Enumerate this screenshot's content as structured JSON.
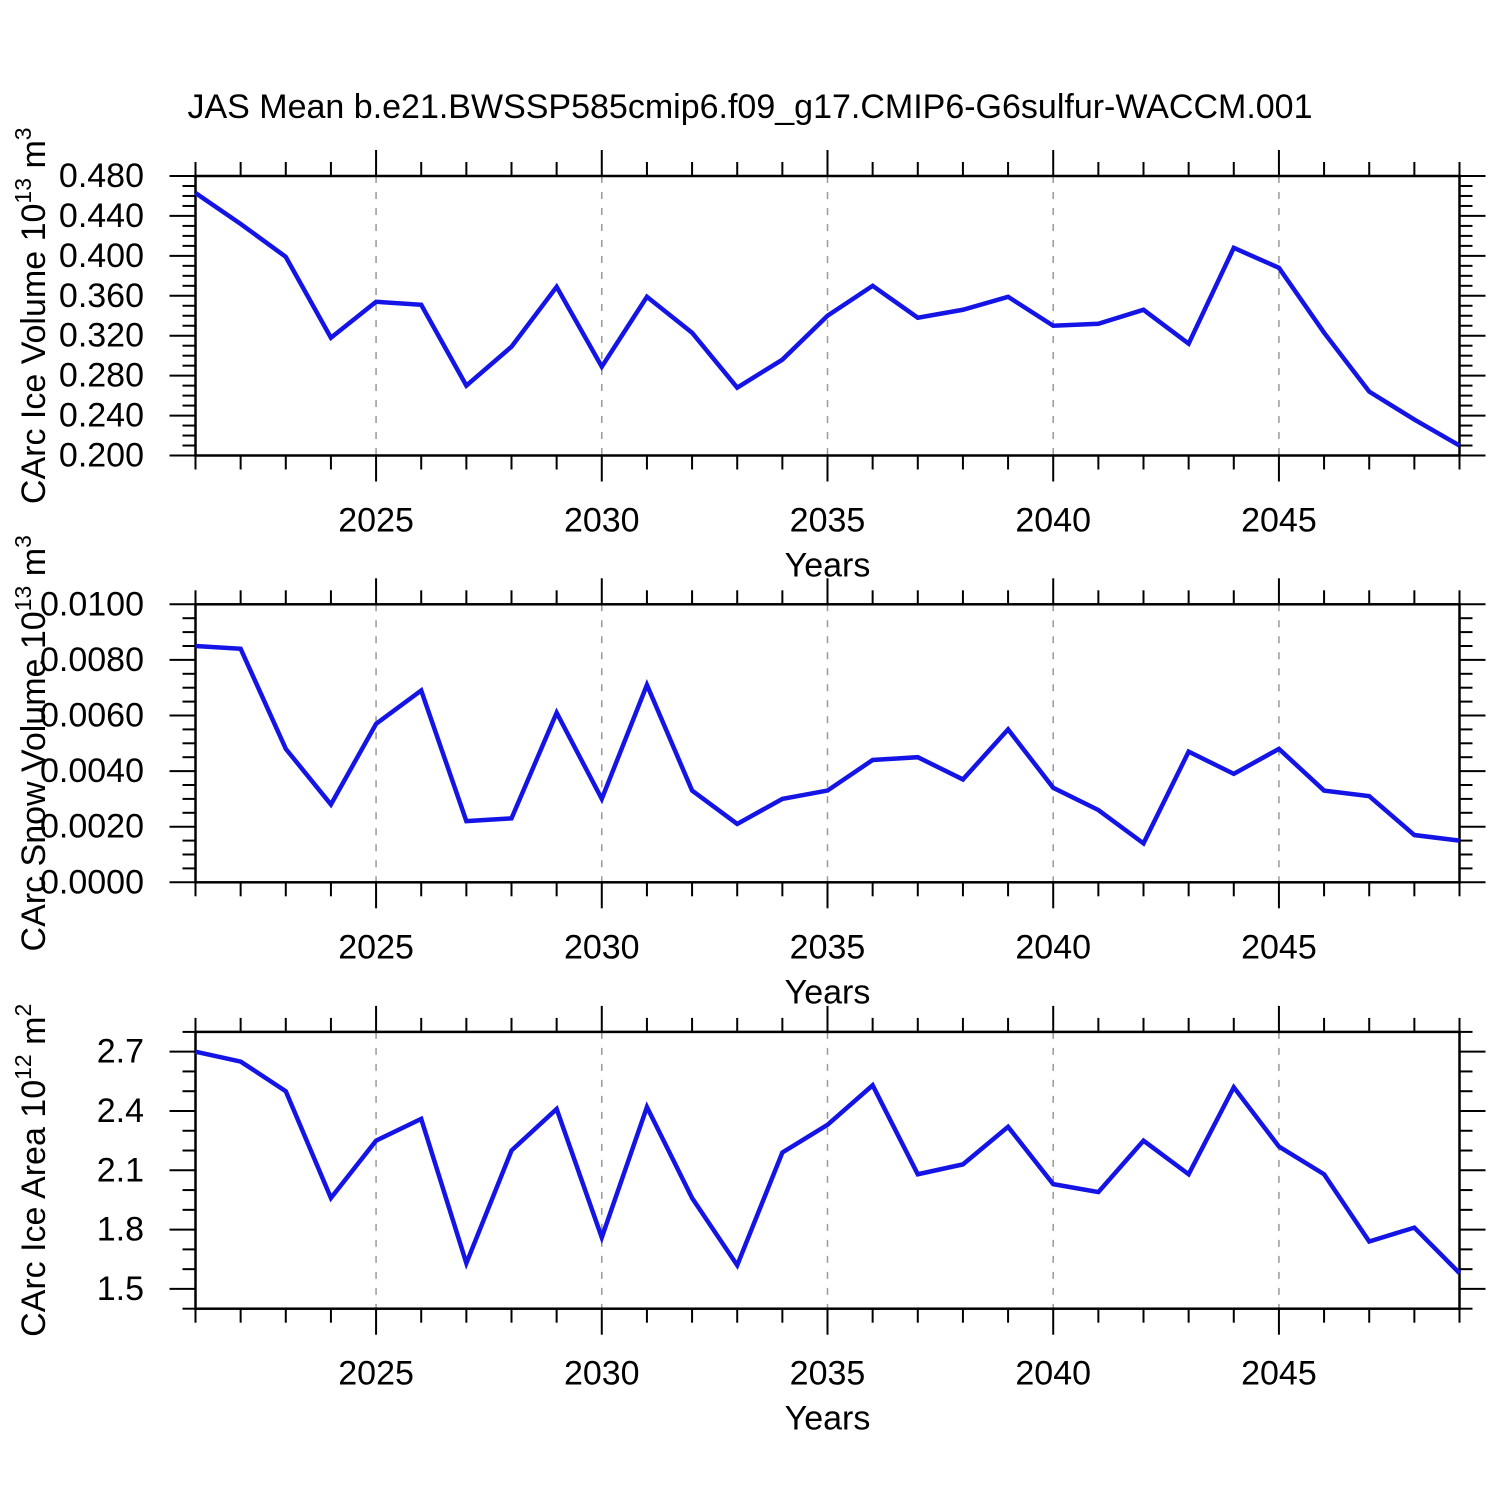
{
  "title": "JAS Mean b.e21.BWSSP585cmip6.f09_g17.CMIP6-G6sulfur-WACCM.001",
  "colors": {
    "line": "#1414e6",
    "axis": "#000000",
    "grid": "#999999",
    "background": "#ffffff",
    "text": "#000000"
  },
  "chart_data": [
    {
      "type": "line",
      "name": "ice-volume",
      "ylabel": "CArc Ice Volume 10^13 m^3",
      "ylabel_parts": [
        {
          "t": "CArc Ice Volume 10",
          "sup": false
        },
        {
          "t": "13",
          "sup": true
        },
        {
          "t": " m",
          "sup": false
        },
        {
          "t": "3",
          "sup": true
        }
      ],
      "xlabel": "Years",
      "x": [
        2021,
        2022,
        2023,
        2024,
        2025,
        2026,
        2027,
        2028,
        2029,
        2030,
        2031,
        2032,
        2033,
        2034,
        2035,
        2036,
        2037,
        2038,
        2039,
        2040,
        2041,
        2042,
        2043,
        2044,
        2045,
        2046,
        2047,
        2048,
        2049
      ],
      "values": [
        0.463,
        0.432,
        0.399,
        0.318,
        0.354,
        0.351,
        0.27,
        0.309,
        0.369,
        0.289,
        0.359,
        0.323,
        0.268,
        0.296,
        0.34,
        0.37,
        0.338,
        0.346,
        0.359,
        0.33,
        0.332,
        0.346,
        0.312,
        0.408,
        0.388,
        0.323,
        0.264,
        0.236,
        0.21
      ],
      "xlim": [
        2021,
        2049
      ],
      "ylim": [
        0.2,
        0.48
      ],
      "yticks": [
        0.2,
        0.24,
        0.28,
        0.32,
        0.36,
        0.4,
        0.44,
        0.48
      ],
      "ytick_labels": [
        "0.200",
        "0.240",
        "0.280",
        "0.320",
        "0.360",
        "0.400",
        "0.440",
        "0.480"
      ],
      "yminor_step": 0.01,
      "xticks": [
        2025,
        2030,
        2035,
        2040,
        2045
      ],
      "xtick_labels": [
        "2025",
        "2030",
        "2035",
        "2040",
        "2045"
      ],
      "xminor_step": 1,
      "grid": "vertical-dashed",
      "legend": "none"
    },
    {
      "type": "line",
      "name": "snow-volume",
      "ylabel": "CArc Snow Volume 10^13 m^3",
      "ylabel_parts": [
        {
          "t": "CArc Snow Volume 10",
          "sup": false
        },
        {
          "t": "13",
          "sup": true
        },
        {
          "t": " m",
          "sup": false
        },
        {
          "t": "3",
          "sup": true
        }
      ],
      "xlabel": "Years",
      "x": [
        2021,
        2022,
        2023,
        2024,
        2025,
        2026,
        2027,
        2028,
        2029,
        2030,
        2031,
        2032,
        2033,
        2034,
        2035,
        2036,
        2037,
        2038,
        2039,
        2040,
        2041,
        2042,
        2043,
        2044,
        2045,
        2046,
        2047,
        2048,
        2049
      ],
      "values": [
        0.0085,
        0.0084,
        0.0048,
        0.0028,
        0.0057,
        0.0069,
        0.0022,
        0.0023,
        0.0061,
        0.003,
        0.0071,
        0.0033,
        0.0021,
        0.003,
        0.0033,
        0.0044,
        0.0045,
        0.0037,
        0.0055,
        0.0034,
        0.0026,
        0.0014,
        0.0047,
        0.0039,
        0.0048,
        0.0033,
        0.0031,
        0.0017,
        0.0015
      ],
      "xlim": [
        2021,
        2049
      ],
      "ylim": [
        0.0,
        0.01
      ],
      "yticks": [
        0.0,
        0.002,
        0.004,
        0.006,
        0.008,
        0.01
      ],
      "ytick_labels": [
        "0.0000",
        "0.0020",
        "0.0040",
        "0.0060",
        "0.0080",
        "0.0100"
      ],
      "yminor_step": 0.0005,
      "xticks": [
        2025,
        2030,
        2035,
        2040,
        2045
      ],
      "xtick_labels": [
        "2025",
        "2030",
        "2035",
        "2040",
        "2045"
      ],
      "xminor_step": 1,
      "grid": "vertical-dashed",
      "legend": "none"
    },
    {
      "type": "line",
      "name": "ice-area",
      "ylabel": "CArc Ice Area 10^12 m^2",
      "ylabel_parts": [
        {
          "t": "CArc Ice Area 10",
          "sup": false
        },
        {
          "t": "12",
          "sup": true
        },
        {
          "t": " m",
          "sup": false
        },
        {
          "t": "2",
          "sup": true
        }
      ],
      "xlabel": "Years",
      "x": [
        2021,
        2022,
        2023,
        2024,
        2025,
        2026,
        2027,
        2028,
        2029,
        2030,
        2031,
        2032,
        2033,
        2034,
        2035,
        2036,
        2037,
        2038,
        2039,
        2040,
        2041,
        2042,
        2043,
        2044,
        2045,
        2046,
        2047,
        2048,
        2049
      ],
      "values": [
        2.7,
        2.65,
        2.5,
        1.96,
        2.25,
        2.36,
        1.63,
        2.2,
        2.41,
        1.76,
        2.42,
        1.96,
        1.62,
        2.19,
        2.33,
        2.53,
        2.08,
        2.13,
        2.32,
        2.03,
        1.99,
        2.25,
        2.08,
        2.52,
        2.22,
        2.08,
        1.74,
        1.81,
        1.58
      ],
      "xlim": [
        2021,
        2049
      ],
      "ylim": [
        1.4,
        2.8
      ],
      "yticks": [
        1.5,
        1.8,
        2.1,
        2.4,
        2.7
      ],
      "ytick_labels": [
        "1.5",
        "1.8",
        "2.1",
        "2.4",
        "2.7"
      ],
      "yminor_step": 0.1,
      "xticks": [
        2025,
        2030,
        2035,
        2040,
        2045
      ],
      "xtick_labels": [
        "2025",
        "2030",
        "2035",
        "2040",
        "2045"
      ],
      "xminor_step": 1,
      "grid": "vertical-dashed",
      "legend": "none"
    }
  ]
}
